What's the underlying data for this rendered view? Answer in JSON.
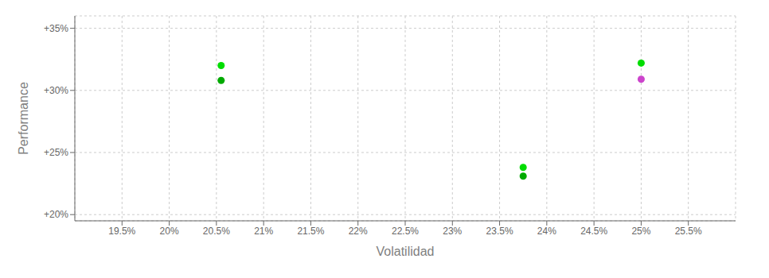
{
  "chart_data": {
    "type": "scatter",
    "xlabel": "Volatilidad",
    "ylabel": "Performance",
    "x": [
      0.2055,
      0.2055,
      0.2375,
      0.2375,
      0.25,
      0.25
    ],
    "values": [
      0.32,
      0.308,
      0.238,
      0.231,
      0.322,
      0.309
    ],
    "colors": [
      "#00dd00",
      "#00aa00",
      "#00dd00",
      "#00aa00",
      "#00dd00",
      "#cc44cc"
    ],
    "xlim": [
      0.19,
      0.26
    ],
    "ylim": [
      0.195,
      0.36
    ],
    "xticks": [
      {
        "value": 0.195,
        "label": "19.5%"
      },
      {
        "value": 0.2,
        "label": "20%"
      },
      {
        "value": 0.205,
        "label": "20.5%"
      },
      {
        "value": 0.21,
        "label": "21%"
      },
      {
        "value": 0.215,
        "label": "21.5%"
      },
      {
        "value": 0.22,
        "label": "22%"
      },
      {
        "value": 0.225,
        "label": "22.5%"
      },
      {
        "value": 0.23,
        "label": "23%"
      },
      {
        "value": 0.235,
        "label": "23.5%"
      },
      {
        "value": 0.24,
        "label": "24%"
      },
      {
        "value": 0.245,
        "label": "24.5%"
      },
      {
        "value": 0.25,
        "label": "25%"
      },
      {
        "value": 0.255,
        "label": "25.5%"
      }
    ],
    "yticks": [
      {
        "value": 0.2,
        "label": "+20%"
      },
      {
        "value": 0.25,
        "label": "+25%"
      },
      {
        "value": 0.3,
        "label": "+30%"
      },
      {
        "value": 0.35,
        "label": "+35%"
      }
    ],
    "grid": true
  }
}
